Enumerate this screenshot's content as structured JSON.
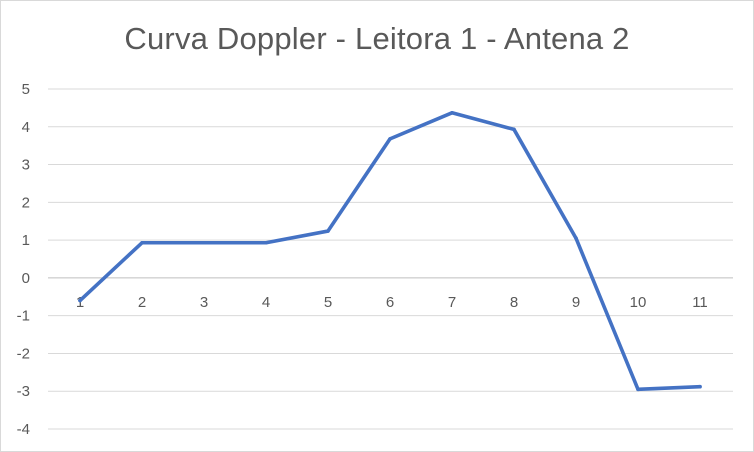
{
  "chart_data": {
    "type": "line",
    "title": "Curva Doppler - Leitora 1 - Antena 2",
    "xlabel": "",
    "ylabel": "",
    "categories": [
      "1",
      "2",
      "3",
      "4",
      "5",
      "6",
      "7",
      "8",
      "9",
      "10",
      "11"
    ],
    "series": [
      {
        "values": [
          -0.6,
          0.93,
          0.93,
          0.93,
          1.24,
          3.68,
          4.37,
          3.93,
          1.05,
          -2.95,
          -2.88
        ],
        "color": "#4472c4"
      }
    ],
    "ylim": [
      -4,
      5
    ],
    "yticks": [
      5,
      4,
      3,
      2,
      1,
      0,
      -1,
      -2,
      -3,
      -4
    ],
    "grid": true,
    "legend": "none",
    "x_tick_position": "at-zero-line"
  }
}
